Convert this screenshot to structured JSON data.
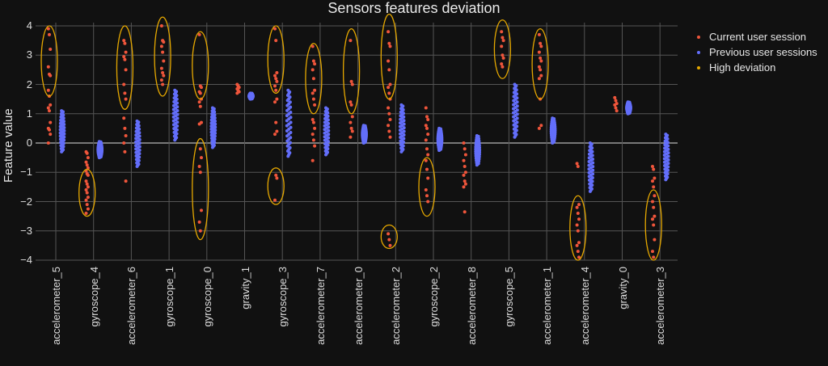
{
  "chart_data": {
    "type": "scatter",
    "title": "Sensors features deviation",
    "xlabel": "",
    "ylabel": "Feature value",
    "ylim": [
      -4,
      4
    ],
    "yticks": [
      "4",
      "3",
      "2",
      "1",
      "0",
      "−1",
      "−2",
      "−3",
      "−4"
    ],
    "grid": true,
    "legend_position": "right",
    "legend": [
      "Current user session",
      "Previous user sessions",
      "High deviation"
    ],
    "colors": {
      "current": "#ef553b",
      "previous": "#636efa",
      "high": "#e6a800",
      "background": "#111111",
      "grid": "#555555"
    },
    "categories": [
      "accelerometer_5",
      "gyroscope_4",
      "accelerometer_6",
      "gyroscope_1",
      "gyroscope_0",
      "gravity_1",
      "gyroscope_3",
      "accelerometer_7",
      "accelerometer_0",
      "accelerometer_2",
      "gyroscope_2",
      "accelerometer_8",
      "gyroscope_5",
      "accelerometer_1",
      "accelerometer_4",
      "gravity_0",
      "accelerometer_3"
    ],
    "series": [
      {
        "name": "Current user session",
        "values": [
          [
            3.9,
            3.7,
            3.2,
            2.6,
            2.35,
            2.3,
            1.8,
            1.6,
            1.3,
            1.2,
            1.1,
            0.7,
            0.5,
            0.45,
            0.3,
            0.0
          ],
          [
            -0.3,
            -0.35,
            -0.5,
            -0.65,
            -0.75,
            -0.85,
            -0.95,
            -1.05,
            -1.1,
            -1.3,
            -1.4,
            -1.5,
            -1.6,
            -1.7,
            -1.85,
            -1.95,
            -2.1,
            -2.25,
            -2.4
          ],
          [
            3.5,
            3.4,
            3.1,
            2.95,
            2.85,
            2.5,
            2.0,
            1.7,
            1.5,
            0.85,
            0.5,
            0.25,
            0.0,
            -0.3,
            -1.3
          ],
          [
            4.0,
            3.5,
            3.45,
            3.3,
            3.1,
            2.8,
            2.55,
            2.4,
            2.3,
            2.15,
            2.0
          ],
          [
            3.7,
            1.95,
            1.9,
            1.75,
            1.7,
            1.5,
            1.4,
            1.25,
            0.7,
            0.65,
            -0.2,
            -0.5,
            -0.8,
            -1.0,
            -2.3,
            -2.7,
            -3.0
          ],
          [
            2.0,
            1.95,
            1.9,
            1.85,
            1.8,
            1.75,
            1.7
          ],
          [
            3.9,
            3.5,
            2.4,
            2.3,
            2.2,
            2.1,
            1.95,
            1.8,
            1.5,
            1.4,
            0.7,
            0.4,
            0.3,
            -1.1,
            -1.2,
            -1.95
          ],
          [
            3.3,
            2.8,
            2.7,
            2.5,
            2.2,
            1.8,
            1.7,
            1.5,
            1.3,
            0.8,
            0.7,
            0.5,
            0.3,
            0.1,
            -0.1,
            -0.6
          ],
          [
            3.5,
            2.1,
            2.0,
            1.4,
            1.3,
            0.9,
            0.7,
            0.5,
            0.4,
            0.2
          ],
          [
            3.8,
            3.4,
            3.3,
            2.8,
            2.5,
            2.0,
            1.9,
            1.7,
            1.5,
            1.2,
            1.0,
            0.8,
            0.6,
            0.4,
            0.2,
            -3.1,
            -3.3,
            -3.5
          ],
          [
            1.2,
            0.9,
            0.8,
            0.6,
            0.5,
            0.3,
            0.1,
            -0.2,
            -0.4,
            -0.6,
            -0.9,
            -1.2,
            -1.6,
            -1.8,
            -2.0
          ],
          [
            0.0,
            -0.2,
            -0.4,
            -0.6,
            -0.8,
            -1.0,
            -1.1,
            -1.3,
            -1.4,
            -1.5,
            -2.35
          ],
          [
            3.8,
            3.6,
            3.5,
            3.3,
            3.0,
            2.9,
            2.7,
            2.6
          ],
          [
            3.7,
            3.4,
            3.3,
            3.1,
            2.9,
            2.8,
            2.6,
            2.5,
            2.3,
            2.2,
            1.5,
            0.6,
            0.5
          ],
          [
            -0.7,
            -0.8,
            -2.1,
            -2.2,
            -2.4,
            -2.6,
            -2.8,
            -3.0,
            -3.4,
            -3.5,
            -3.7,
            -3.9
          ],
          [
            1.55,
            1.45,
            1.35,
            1.3,
            1.2,
            1.1
          ],
          [
            -0.8,
            -0.9,
            -1.2,
            -1.3,
            -1.5,
            -1.8,
            -2.0,
            -2.2,
            -2.5,
            -2.6,
            -2.8,
            -3.3,
            -3.7,
            -3.9
          ]
        ]
      },
      {
        "name": "Previous user sessions",
        "ranges": [
          [
            -0.3,
            1.1
          ],
          [
            -0.5,
            0.05
          ],
          [
            -0.8,
            0.75
          ],
          [
            0.1,
            1.8
          ],
          [
            -0.15,
            1.2
          ],
          [
            1.5,
            1.7
          ],
          [
            -0.45,
            1.8
          ],
          [
            -0.4,
            1.2
          ],
          [
            0.0,
            0.6
          ],
          [
            -0.3,
            1.3
          ],
          [
            -0.25,
            0.5
          ],
          [
            -0.75,
            0.25
          ],
          [
            0.2,
            2.0
          ],
          [
            0.0,
            0.85
          ],
          [
            -1.65,
            0.0
          ],
          [
            1.0,
            1.4
          ],
          [
            -1.25,
            0.3
          ]
        ]
      },
      {
        "name": "High deviation",
        "ellipses": [
          {
            "cat": 0,
            "y": [
              1.6,
              4.0
            ]
          },
          {
            "cat": 1,
            "y": [
              -2.5,
              -0.9
            ]
          },
          {
            "cat": 2,
            "y": [
              1.15,
              4.0
            ]
          },
          {
            "cat": 3,
            "y": [
              1.6,
              4.3
            ]
          },
          {
            "cat": 4,
            "y": [
              1.5,
              3.8
            ]
          },
          {
            "cat": 4,
            "y": [
              -3.3,
              0.15
            ]
          },
          {
            "cat": 6,
            "y": [
              1.7,
              4.0
            ]
          },
          {
            "cat": 6,
            "y": [
              -2.1,
              -0.85
            ]
          },
          {
            "cat": 7,
            "y": [
              1.0,
              3.4
            ]
          },
          {
            "cat": 8,
            "y": [
              1.0,
              3.9
            ]
          },
          {
            "cat": 9,
            "y": [
              1.5,
              4.4
            ]
          },
          {
            "cat": 9,
            "y": [
              -3.6,
              -2.8
            ]
          },
          {
            "cat": 10,
            "y": [
              -2.5,
              -0.5
            ]
          },
          {
            "cat": 12,
            "y": [
              2.2,
              4.2
            ]
          },
          {
            "cat": 13,
            "y": [
              1.5,
              3.9
            ]
          },
          {
            "cat": 14,
            "y": [
              -4.0,
              -1.8
            ]
          },
          {
            "cat": 16,
            "y": [
              -4.0,
              -1.6
            ]
          }
        ]
      }
    ]
  }
}
